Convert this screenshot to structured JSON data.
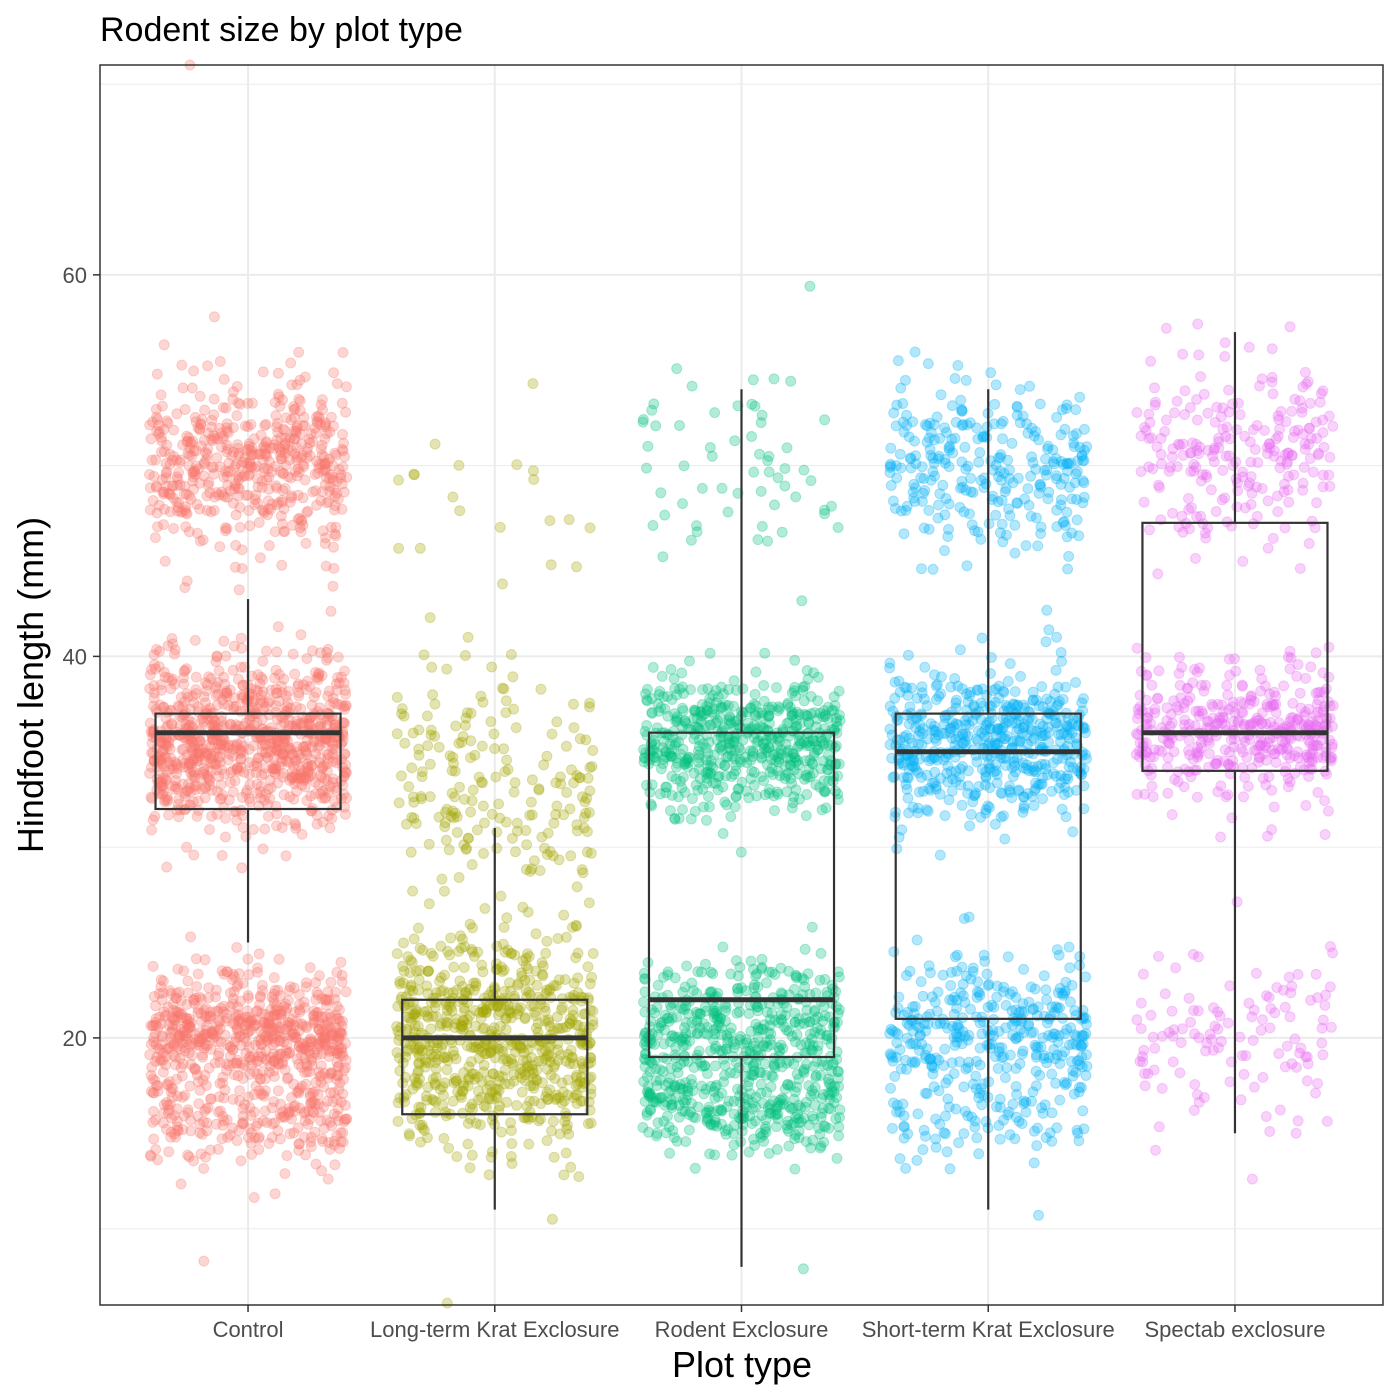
{
  "chart_data": {
    "type": "box-jitter",
    "title": "Rodent size by plot type",
    "xlabel": "Plot type",
    "ylabel": "Hindfoot length (mm)",
    "ylim": [
      6,
      71
    ],
    "yticks": [
      20,
      40,
      60
    ],
    "grid": true,
    "legend": "none",
    "categories": [
      "Control",
      "Long-term Krat Exclosure",
      "Rodent Exclosure",
      "Short-term Krat Exclosure",
      "Spectab exclosure"
    ],
    "colors": [
      "#F8766D",
      "#A3A500",
      "#00BF7D",
      "#00B0F6",
      "#E76BF3"
    ],
    "boxes": [
      {
        "category": "Control",
        "min": 25,
        "q1": 32,
        "median": 36,
        "q3": 37,
        "max": 43
      },
      {
        "category": "Long-term Krat Exclosure",
        "min": 11,
        "q1": 16,
        "median": 20,
        "q3": 22,
        "max": 31
      },
      {
        "category": "Rodent Exclosure",
        "min": 8,
        "q1": 19,
        "median": 22,
        "q3": 36,
        "max": 54
      },
      {
        "category": "Short-term Krat Exclosure",
        "min": 11,
        "q1": 21,
        "median": 35,
        "q3": 37,
        "max": 54
      },
      {
        "category": "Spectab exclosure",
        "min": 15,
        "q1": 34,
        "median": 36,
        "q3": 47,
        "max": 57
      }
    ],
    "point_clusters": [
      [
        {
          "center": 50,
          "spread": 2.2,
          "count": 520
        },
        {
          "center": 35.5,
          "spread": 2.2,
          "count": 900
        },
        {
          "center": 20.3,
          "spread": 1.6,
          "count": 620
        },
        {
          "center": 16,
          "spread": 1.3,
          "count": 220
        }
      ],
      [
        {
          "center": 20,
          "spread": 2.8,
          "count": 700
        },
        {
          "center": 33,
          "spread": 3.2,
          "count": 200
        },
        {
          "center": 49,
          "spread": 2.5,
          "count": 18
        }
      ],
      [
        {
          "center": 35.5,
          "spread": 1.8,
          "count": 550
        },
        {
          "center": 20.5,
          "spread": 1.8,
          "count": 420
        },
        {
          "center": 16.2,
          "spread": 1.2,
          "count": 260
        },
        {
          "center": 50,
          "spread": 2.5,
          "count": 60
        }
      ],
      [
        {
          "center": 35.5,
          "spread": 1.8,
          "count": 520
        },
        {
          "center": 50,
          "spread": 2.2,
          "count": 280
        },
        {
          "center": 20.5,
          "spread": 1.8,
          "count": 320
        },
        {
          "center": 16,
          "spread": 1.2,
          "count": 90
        }
      ],
      [
        {
          "center": 36,
          "spread": 1.6,
          "count": 420
        },
        {
          "center": 50.5,
          "spread": 2.3,
          "count": 230
        },
        {
          "center": 20,
          "spread": 2.2,
          "count": 120
        }
      ]
    ],
    "outlier_points": [
      {
        "category": "Control",
        "y": 71
      },
      {
        "category": "Control",
        "y": 8.3
      },
      {
        "category": "Control",
        "y": 57.8
      },
      {
        "category": "Long-term Krat Exclosure",
        "y": 6.1
      },
      {
        "category": "Long-term Krat Exclosure",
        "y": 54.3
      },
      {
        "category": "Long-term Krat Exclosure",
        "y": 40.1
      },
      {
        "category": "Long-term Krat Exclosure",
        "y": 43.8
      },
      {
        "category": "Rodent Exclosure",
        "y": 7.9
      },
      {
        "category": "Rodent Exclosure",
        "y": 54.5
      },
      {
        "category": "Short-term Krat Exclosure",
        "y": 10.7
      },
      {
        "category": "Spectab exclosure",
        "y": 57.2
      },
      {
        "category": "Spectab exclosure",
        "y": 12.6
      }
    ]
  }
}
